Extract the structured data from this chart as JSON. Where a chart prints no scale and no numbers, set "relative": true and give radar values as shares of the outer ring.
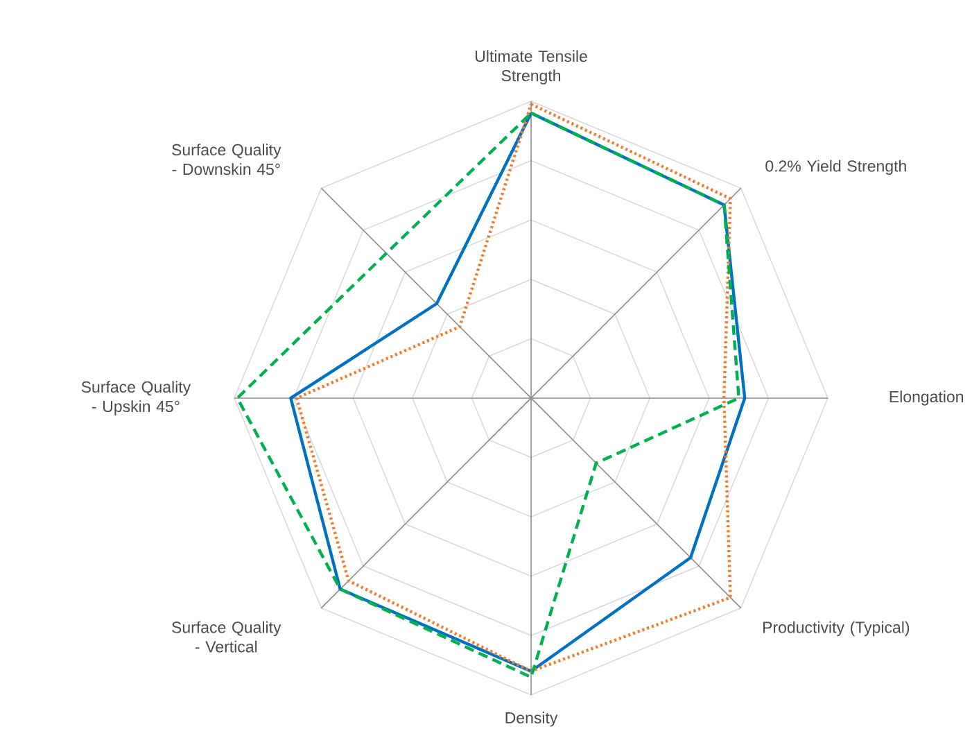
{
  "chart_data": {
    "type": "radar",
    "relative": true,
    "grid": true,
    "categories": [
      "Ultimate Tensile Strength",
      "0.2% Yield Strength",
      "Elongation",
      "Productivity (Typical)",
      "Density",
      "Surface Quality - Vertical",
      "Surface Quality - Upskin 45°",
      "Surface Quality - Downskin 45°"
    ],
    "series": [
      {
        "color": "#0070c0",
        "line_style": "solid",
        "values": [
          0.96,
          0.92,
          0.72,
          0.76,
          0.92,
          0.91,
          0.81,
          0.45
        ]
      },
      {
        "color": "#ed7d31",
        "line_style": "dotted",
        "values": [
          0.99,
          0.95,
          0.65,
          0.95,
          0.92,
          0.87,
          0.79,
          0.34
        ]
      },
      {
        "color": "#00b050",
        "line_style": "dashed",
        "values": [
          0.96,
          0.92,
          0.7,
          0.31,
          0.94,
          0.91,
          0.99,
          0.69
        ]
      }
    ]
  }
}
